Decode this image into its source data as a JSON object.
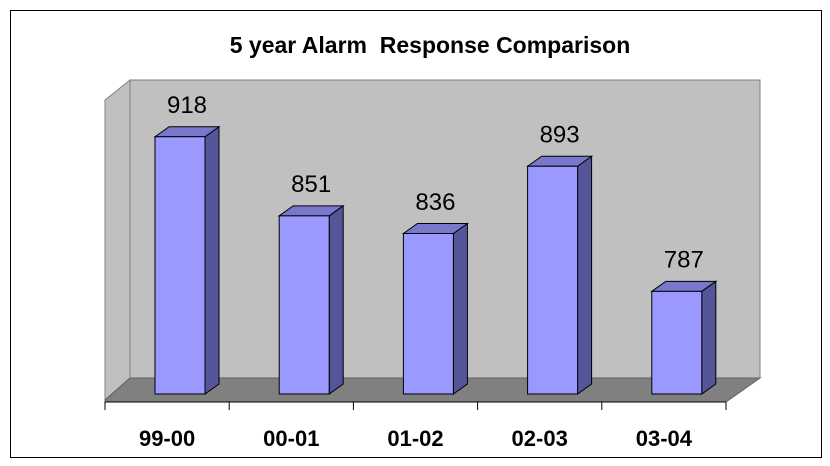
{
  "chart_data": {
    "type": "bar3d",
    "title": "5 year Alarm  Response Comparison",
    "categories": [
      "99-00",
      "00-01",
      "01-02",
      "02-03",
      "03-04"
    ],
    "values": [
      918,
      851,
      836,
      893,
      787
    ],
    "color": "#9999ff",
    "ylim": [
      700,
      950
    ]
  }
}
